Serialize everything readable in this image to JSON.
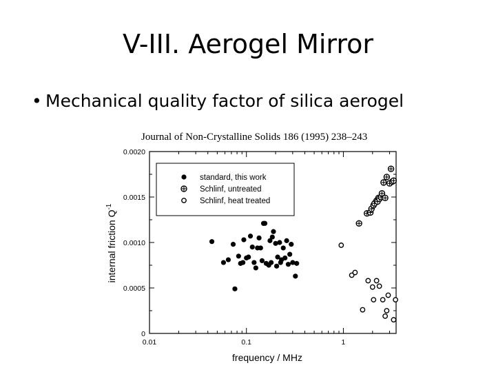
{
  "slide": {
    "title": "V-III. Aerogel Mirror",
    "bullet_symbol": "•",
    "bullet_text": "Mechanical quality factor of silica aerogel"
  },
  "figure": {
    "journal_caption": "Journal of Non-Crystalline Solids 186 (1995) 238–243"
  },
  "chart_data": {
    "type": "scatter",
    "title": "",
    "xlabel": "frequency / MHz",
    "ylabel": "internal friction Q",
    "ylabel_superscript": "-1",
    "x_scale": "log",
    "xlim": [
      0.01,
      3.5
    ],
    "ylim": [
      0,
      0.002
    ],
    "x_ticks": [
      0.01,
      0.1,
      1
    ],
    "x_tick_labels": [
      "0.01",
      "0.1",
      "1"
    ],
    "y_ticks": [
      0,
      0.0005,
      0.001,
      0.0015,
      0.002
    ],
    "y_tick_labels": [
      "0",
      "0.0005",
      "0.0010",
      "0.0015",
      "0.0020"
    ],
    "legend_position": "top-left",
    "grid": false,
    "series": [
      {
        "name": "standard, this work",
        "marker": "filled-circle",
        "x": [
          0.044,
          0.058,
          0.065,
          0.073,
          0.076,
          0.083,
          0.087,
          0.092,
          0.094,
          0.1,
          0.105,
          0.11,
          0.115,
          0.12,
          0.125,
          0.13,
          0.135,
          0.14,
          0.145,
          0.15,
          0.155,
          0.16,
          0.17,
          0.175,
          0.18,
          0.185,
          0.19,
          0.2,
          0.205,
          0.21,
          0.22,
          0.225,
          0.23,
          0.24,
          0.25,
          0.26,
          0.27,
          0.28,
          0.29,
          0.3,
          0.32,
          0.33
        ],
        "y": [
          0.00101,
          0.00078,
          0.00081,
          0.00098,
          0.00049,
          0.00085,
          0.00077,
          0.00078,
          0.00103,
          0.00083,
          0.00084,
          0.00107,
          0.00095,
          0.00078,
          0.00072,
          0.00094,
          0.00105,
          0.00094,
          0.0008,
          0.00121,
          0.00121,
          0.00077,
          0.00075,
          0.00102,
          0.00078,
          0.00106,
          0.00112,
          0.00099,
          0.00074,
          0.00084,
          0.001,
          0.00078,
          0.00081,
          0.00094,
          0.00083,
          0.00102,
          0.00076,
          0.00087,
          0.00098,
          0.00078,
          0.00063,
          0.00077
        ]
      },
      {
        "name": "Schlinf, untreated",
        "marker": "circle-cross",
        "x": [
          1.45,
          1.75,
          1.9,
          1.95,
          2.05,
          2.1,
          2.2,
          2.25,
          2.3,
          2.35,
          2.45,
          2.5,
          2.6,
          2.7,
          2.8,
          3.0,
          3.1,
          3.2,
          3.3
        ],
        "y": [
          0.00121,
          0.00132,
          0.00133,
          0.00137,
          0.00141,
          0.00143,
          0.00146,
          0.00145,
          0.00149,
          0.00148,
          0.0015,
          0.00154,
          0.00166,
          0.00149,
          0.00172,
          0.00165,
          0.00181,
          0.00167,
          0.00168
        ]
      },
      {
        "name": "Schlinf, heat treated",
        "marker": "open-circle",
        "x": [
          0.95,
          1.22,
          1.32,
          1.58,
          1.8,
          2.0,
          2.05,
          2.2,
          2.35,
          2.55,
          2.7,
          2.8,
          2.9,
          3.3,
          3.45
        ],
        "y": [
          0.00097,
          0.00064,
          0.00067,
          0.00026,
          0.00058,
          0.00051,
          0.00037,
          0.00058,
          0.00052,
          0.00037,
          0.00019,
          0.00025,
          0.00042,
          0.00015,
          0.00037
        ]
      }
    ]
  }
}
